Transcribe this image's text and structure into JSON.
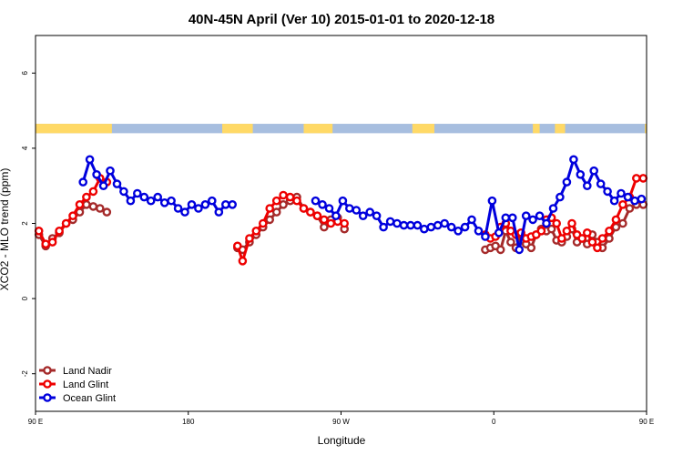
{
  "chart_data": {
    "type": "line",
    "title": "40N-45N April (Ver 10)   2015-01-01 to 2020-12-18",
    "xlabel": "Longitude",
    "ylabel": "XCO2 - MLO trend (ppm)",
    "xlim": [
      90,
      450
    ],
    "ylim": [
      -3,
      7
    ],
    "xticks": [
      {
        "value": 90,
        "label": "90 E"
      },
      {
        "value": 180,
        "label": "180"
      },
      {
        "value": 270,
        "label": "90 W"
      },
      {
        "value": 360,
        "label": "0"
      },
      {
        "value": 450,
        "label": "90 E"
      }
    ],
    "yticks": [
      {
        "value": -2,
        "label": "-2"
      },
      {
        "value": 0,
        "label": "0"
      },
      {
        "value": 2,
        "label": "2"
      },
      {
        "value": 4,
        "label": "4"
      },
      {
        "value": 6,
        "label": "6"
      }
    ],
    "grid": false,
    "legend_position": "bottom-left",
    "land_mask_bar": {
      "y_range": [
        4.4,
        4.65
      ],
      "land_color": "#FFD966",
      "ocean_color": "#A7BEDF",
      "land_segments": [
        [
          90,
          135
        ],
        [
          200,
          218
        ],
        [
          248,
          265
        ],
        [
          312,
          325
        ],
        [
          383,
          387
        ],
        [
          396,
          402
        ],
        [
          449,
          450
        ]
      ]
    },
    "series": [
      {
        "name": "Land Nadir",
        "color": "#A52A2A",
        "x": [
          92,
          96,
          100,
          104,
          108,
          112,
          116,
          120,
          124,
          128,
          132,
          209,
          212,
          216,
          220,
          224,
          228,
          232,
          236,
          240,
          244,
          248,
          252,
          256,
          260,
          264,
          268,
          272,
          355,
          358,
          361,
          364,
          367,
          370,
          373,
          376,
          379,
          382,
          385,
          388,
          391,
          394,
          397,
          400,
          403,
          406,
          409,
          412,
          415,
          418,
          421,
          424,
          428,
          432,
          436,
          440,
          444,
          448
        ],
        "y": [
          1.7,
          1.4,
          1.6,
          1.75,
          2.0,
          2.1,
          2.3,
          2.5,
          2.45,
          2.4,
          2.3,
          1.35,
          1.3,
          1.5,
          1.7,
          1.9,
          2.1,
          2.3,
          2.5,
          2.6,
          2.7,
          2.4,
          2.3,
          2.2,
          1.9,
          2.1,
          2.15,
          1.85,
          1.3,
          1.35,
          1.4,
          1.3,
          1.8,
          1.5,
          1.35,
          1.7,
          1.45,
          1.35,
          1.7,
          1.85,
          1.8,
          1.85,
          1.55,
          1.5,
          1.65,
          1.85,
          1.5,
          1.6,
          1.45,
          1.7,
          1.5,
          1.35,
          1.6,
          1.9,
          2.0,
          2.4,
          2.5,
          2.5
        ]
      },
      {
        "name": "Land Glint",
        "color": "#EE0000",
        "x": [
          92,
          96,
          100,
          104,
          108,
          112,
          116,
          120,
          124,
          128,
          132,
          209,
          212,
          216,
          220,
          224,
          228,
          232,
          236,
          240,
          244,
          248,
          252,
          256,
          260,
          264,
          268,
          272,
          355,
          358,
          361,
          364,
          367,
          370,
          373,
          376,
          379,
          382,
          385,
          388,
          391,
          394,
          397,
          400,
          403,
          406,
          409,
          412,
          415,
          418,
          421,
          424,
          428,
          432,
          436,
          440,
          444,
          448
        ],
        "y": [
          1.8,
          1.45,
          1.5,
          1.8,
          2.0,
          2.2,
          2.5,
          2.7,
          2.85,
          3.2,
          3.1,
          1.4,
          1.0,
          1.6,
          1.8,
          2.0,
          2.4,
          2.6,
          2.75,
          2.7,
          2.6,
          2.4,
          2.3,
          2.2,
          2.1,
          2.0,
          2.05,
          2.0,
          1.7,
          1.6,
          1.65,
          1.9,
          2.0,
          1.8,
          1.7,
          1.75,
          1.6,
          1.65,
          1.7,
          1.8,
          2.1,
          2.15,
          2.0,
          1.6,
          1.8,
          2.0,
          1.7,
          1.6,
          1.75,
          1.5,
          1.35,
          1.6,
          1.8,
          2.1,
          2.5,
          2.7,
          3.2,
          3.2
        ]
      },
      {
        "name": "Ocean Glint",
        "color": "#0000DD",
        "x": [
          118,
          122,
          126,
          130,
          134,
          138,
          142,
          146,
          150,
          154,
          158,
          162,
          166,
          170,
          174,
          178,
          182,
          186,
          190,
          194,
          198,
          202,
          206,
          255,
          259,
          263,
          267,
          271,
          275,
          279,
          283,
          287,
          291,
          295,
          299,
          303,
          307,
          311,
          315,
          319,
          323,
          327,
          331,
          335,
          339,
          343,
          347,
          351,
          355,
          359,
          363,
          367,
          371,
          375,
          379,
          383,
          387,
          391,
          395,
          399,
          403,
          407,
          411,
          415,
          419,
          423,
          427,
          431,
          435,
          439,
          443,
          447
        ],
        "y": [
          3.1,
          3.7,
          3.3,
          3.0,
          3.4,
          3.05,
          2.85,
          2.6,
          2.8,
          2.7,
          2.6,
          2.7,
          2.55,
          2.6,
          2.4,
          2.3,
          2.5,
          2.4,
          2.5,
          2.6,
          2.3,
          2.5,
          2.5,
          2.6,
          2.5,
          2.4,
          2.2,
          2.6,
          2.4,
          2.35,
          2.2,
          2.3,
          2.2,
          1.9,
          2.05,
          2.0,
          1.95,
          1.95,
          1.95,
          1.85,
          1.9,
          1.95,
          2.0,
          1.9,
          1.8,
          1.9,
          2.1,
          1.8,
          1.65,
          2.6,
          1.75,
          2.15,
          2.15,
          1.3,
          2.2,
          2.1,
          2.2,
          2.0,
          2.4,
          2.7,
          3.1,
          3.7,
          3.3,
          3.0,
          3.4,
          3.05,
          2.85,
          2.6,
          2.8,
          2.7,
          2.6,
          2.65
        ]
      }
    ]
  }
}
